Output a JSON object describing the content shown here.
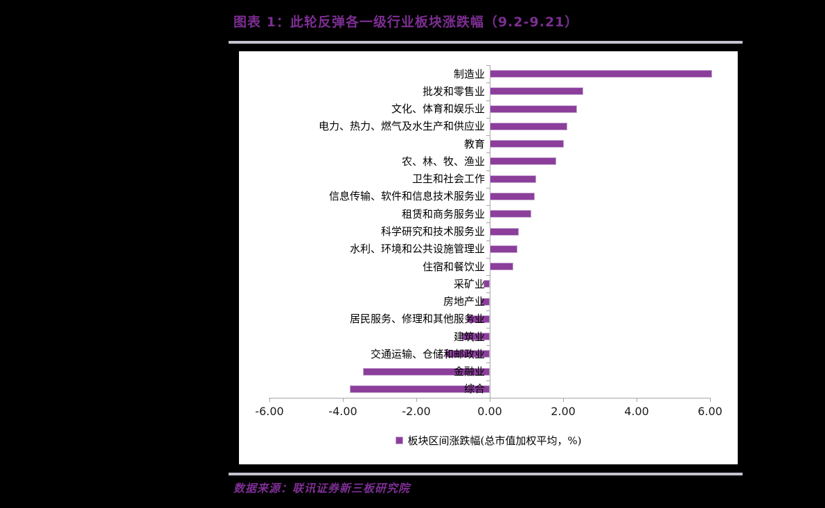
{
  "page": {
    "title": "图表 1：此轮反弹各一级行业板块涨跌幅（9.2-9.21）",
    "source": "数据来源：联讯证券新三板研究院"
  },
  "colors": {
    "background": "#000000",
    "chart_background": "#FFFFFF",
    "bar_fill": "#8B3F9B",
    "bar_border": "#C7A6D2",
    "title_text": "#7D2E93",
    "source_text": "#7D2E93",
    "divider_line": "#C6C3CF",
    "axis_line": "#A6A6A6",
    "label_text": "#000000"
  },
  "chart_data": {
    "type": "bar",
    "orientation": "horizontal",
    "categories": [
      "制造业",
      "批发和零售业",
      "文化、体育和娱乐业",
      "电力、热力、燃气及水生产和供应业",
      "教育",
      "农、林、牧、渔业",
      "卫生和社会工作",
      "信息传输、软件和信息技术服务业",
      "租赁和商务服务业",
      "科学研究和技术服务业",
      "水利、环境和公共设施管理业",
      "住宿和餐饮业",
      "采矿业",
      "房地产业",
      "居民服务、修理和其他服务业",
      "建筑业",
      "交通运输、仓储和邮政业",
      "金融业",
      "综合"
    ],
    "values": [
      6.05,
      2.55,
      2.38,
      2.12,
      2.01,
      1.81,
      1.26,
      1.23,
      1.13,
      0.79,
      0.76,
      0.65,
      -0.17,
      -0.25,
      -0.63,
      -0.77,
      -1.2,
      -3.45,
      -3.81
    ],
    "xlim": [
      -6,
      6
    ],
    "x_ticks": [
      "-6.00",
      "-4.00",
      "-2.00",
      "0.00",
      "2.00",
      "4.00",
      "6.00"
    ],
    "legend": [
      "板块区间涨跌幅(总市值加权平均，%)"
    ],
    "legend_position": "bottom",
    "grid": false,
    "unit": "%"
  }
}
